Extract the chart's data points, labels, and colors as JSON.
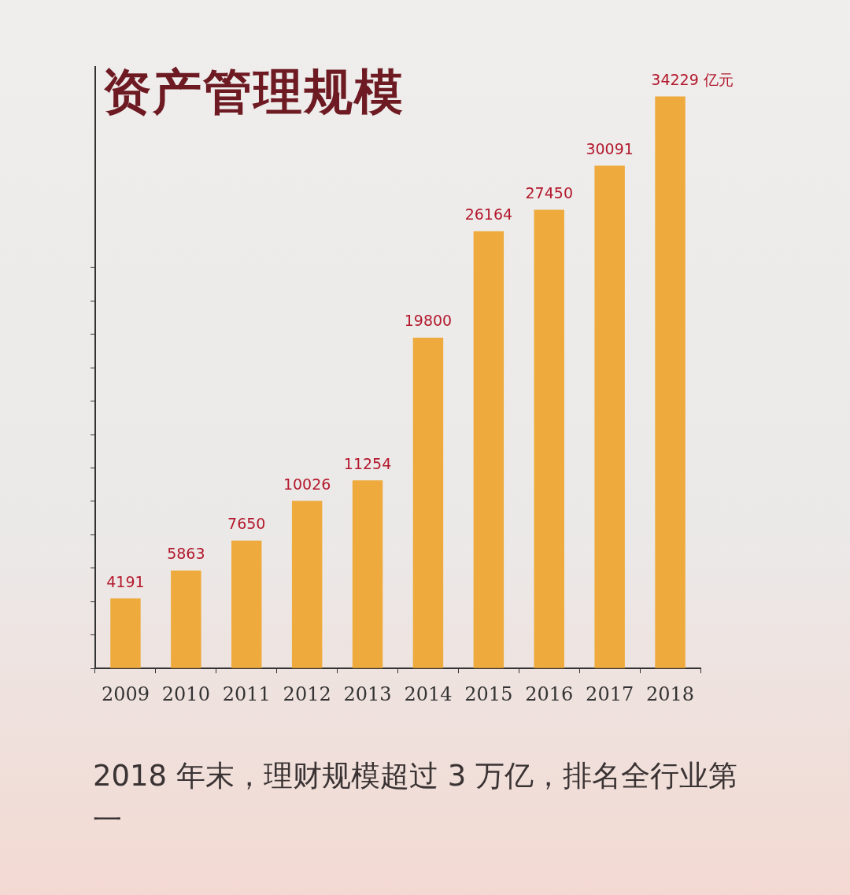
{
  "chart_data": {
    "type": "bar",
    "title": "资产管理规模",
    "categories": [
      "2009",
      "2010",
      "2011",
      "2012",
      "2013",
      "2014",
      "2015",
      "2016",
      "2017",
      "2018"
    ],
    "values": [
      4191,
      5863,
      7650,
      10026,
      11254,
      19800,
      26164,
      27450,
      30091,
      34229
    ],
    "value_labels": [
      "4191",
      "5863",
      "7650",
      "10026",
      "11254",
      "19800",
      "26164",
      "27450",
      "30091",
      "34229 亿元"
    ],
    "color": "#eeaa3c",
    "ylim": [
      0,
      36000
    ],
    "yticks": [
      {
        "value": 0,
        "label": null
      },
      {
        "value": 2000,
        "label": null
      },
      {
        "value": 4000,
        "label": null
      },
      {
        "value": 6000,
        "label": null
      },
      {
        "value": 8000,
        "label": null
      },
      {
        "value": 10000,
        "label": null
      },
      {
        "value": 12000,
        "label": null
      },
      {
        "value": 14000,
        "label": null
      },
      {
        "value": 16000,
        "label": null
      },
      {
        "value": 18000,
        "label": null
      },
      {
        "value": 20000,
        "label": null
      },
      {
        "value": 22000,
        "label": null
      },
      {
        "value": 24000,
        "label": null
      }
    ],
    "tick_labels": "x",
    "grid": false,
    "legend": false,
    "annotations": [
      "2018 年末，理财规模超过 3 万亿，排名全行业第一"
    ]
  }
}
